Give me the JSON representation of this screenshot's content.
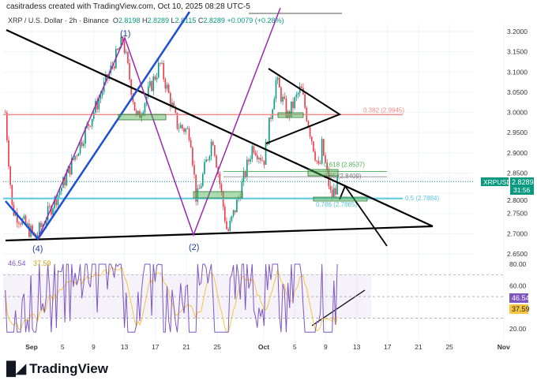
{
  "header": {
    "credit": "casitradess created with TradingView.com, Oct 10, 2025 08:28 UTC-5",
    "symbol": "XRP / U.S. Dollar · 2h · Binance",
    "o_label": "O",
    "o": "2.8198",
    "h_label": "H",
    "h": "2.8289",
    "l_label": "L",
    "l": "2.8115",
    "c_label": "C",
    "c": "2.8289",
    "change": "+0.0079 (+0.28%)"
  },
  "price_tag": {
    "ticker": "XRPUSD",
    "price": "2.8289",
    "countdown": "31:56"
  },
  "rsi_tags": {
    "rsi": "46.54",
    "ma": "37.59"
  },
  "footer": {
    "logo": "TradingView"
  },
  "colors": {
    "up": "#089981",
    "down": "#f23645",
    "rsi": "#7e57c2",
    "rsi_ma": "#f5c542",
    "fib_red": "#f28b8b",
    "fib_cyan": "#5ac8dc",
    "fib_green": "#4caf50"
  },
  "chart_data": {
    "type": "candlestick",
    "title": "XRP / U.S. Dollar · 2h · Binance",
    "ylim": [
      2.63,
      3.24
    ],
    "y_ticks": [
      "3.2000",
      "3.1500",
      "3.1000",
      "3.0500",
      "3.0000",
      "2.9500",
      "2.9000",
      "2.8500",
      "2.8000",
      "2.7500",
      "2.7000",
      "2.6500"
    ],
    "x_ticks": [
      "Sep",
      "5",
      "9",
      "13",
      "17",
      "21",
      "25",
      "Oct",
      "5",
      "9",
      "13",
      "17",
      "21",
      "25",
      "Nov"
    ],
    "price_path": [
      [
        -3.4,
        3.0
      ],
      [
        -2.5,
        2.76
      ],
      [
        0.5,
        2.69
      ],
      [
        4,
        2.82
      ],
      [
        8,
        3.0
      ],
      [
        11.8,
        3.18
      ],
      [
        13.6,
        2.98
      ],
      [
        16.6,
        3.12
      ],
      [
        18.8,
        2.97
      ],
      [
        20.5,
        2.95
      ],
      [
        21.3,
        2.78
      ],
      [
        23.4,
        2.94
      ],
      [
        25.3,
        2.7
      ],
      [
        26.6,
        2.78
      ],
      [
        28.6,
        2.92
      ],
      [
        30,
        2.88
      ],
      [
        31.6,
        3.08
      ],
      [
        33.1,
        2.99
      ],
      [
        34.8,
        3.06
      ],
      [
        35.9,
        2.96
      ],
      [
        37.2,
        2.85
      ],
      [
        37.5,
        2.92
      ],
      [
        38.7,
        2.79
      ],
      [
        39.7,
        2.83
      ]
    ],
    "waves": [
      {
        "label": "(1)"
      },
      {
        "label": "(2)"
      },
      {
        "label": "(4)"
      }
    ],
    "fib_levels": [
      {
        "label": "0.382 (2.9945)",
        "price": 2.9945
      },
      {
        "label": "0.618 (2.8537)",
        "price": 2.8537
      },
      {
        "label": "0.65 (2.8409)",
        "price": 2.8409
      },
      {
        "label": "0.786 (2.7865)",
        "price": 2.7865
      },
      {
        "label": "0.5 (2.7884)",
        "price": 2.7884
      }
    ],
    "rsi": {
      "ticks": [
        "80.00",
        "60.00",
        "20.00"
      ],
      "ylim": [
        15,
        85
      ],
      "band": [
        30,
        70
      ],
      "last": 46.54,
      "ma_last": 37.59
    }
  }
}
